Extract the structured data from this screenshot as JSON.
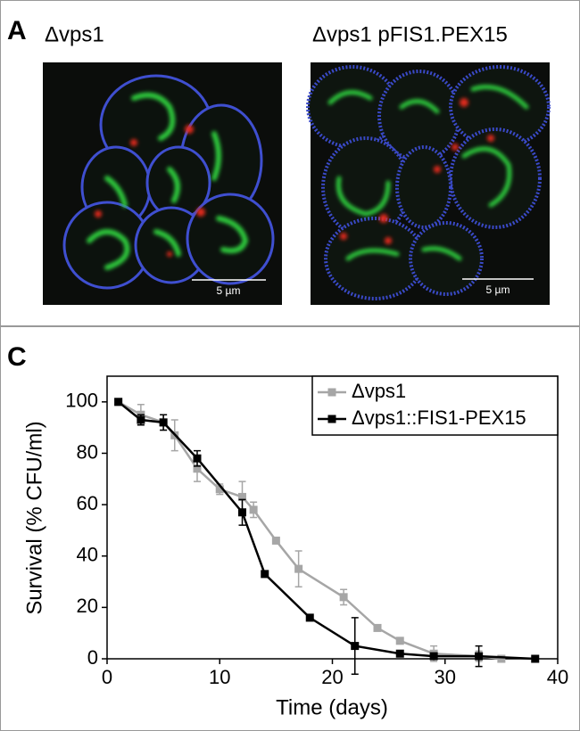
{
  "panel_a": {
    "label": "A",
    "left_title": "Δvps1",
    "right_title": "Δvps1 pFIS1.PEX15",
    "left_scale": "5 µm",
    "right_scale": "5 µm"
  },
  "chart_data": {
    "type": "line",
    "panel_label": "C",
    "x_label": "Time (days)",
    "y_label": "Survival (% CFU/ml)",
    "xlim": [
      0,
      40
    ],
    "xticks": [
      0,
      10,
      20,
      30,
      40
    ],
    "ylim": [
      0,
      110
    ],
    "yticks": [
      0,
      20,
      40,
      60,
      80,
      100
    ],
    "legend": "top-right",
    "series": [
      {
        "name": "Δvps1",
        "color": "#a6a6a6",
        "x": [
          1,
          3,
          5,
          6,
          8,
          10,
          12,
          13,
          15,
          17,
          21,
          24,
          26,
          29,
          33,
          35
        ],
        "values": [
          100,
          95,
          92,
          87,
          74,
          66,
          63,
          58,
          46,
          35,
          24,
          12,
          7,
          2,
          1,
          0
        ],
        "errors": [
          0,
          4,
          3,
          6,
          5,
          2,
          6,
          3,
          1,
          7,
          3,
          1,
          1,
          3,
          2,
          1
        ]
      },
      {
        "name": "Δvps1::FIS1-PEX15",
        "color": "#000000",
        "x": [
          1,
          3,
          5,
          8,
          12,
          14,
          18,
          22,
          26,
          29,
          33,
          38
        ],
        "values": [
          100,
          93,
          92,
          78,
          57,
          33,
          16,
          5,
          2,
          1,
          1,
          0
        ],
        "errors": [
          0,
          2,
          3,
          3,
          5,
          1,
          1,
          11,
          1,
          1,
          4,
          1
        ]
      }
    ]
  }
}
